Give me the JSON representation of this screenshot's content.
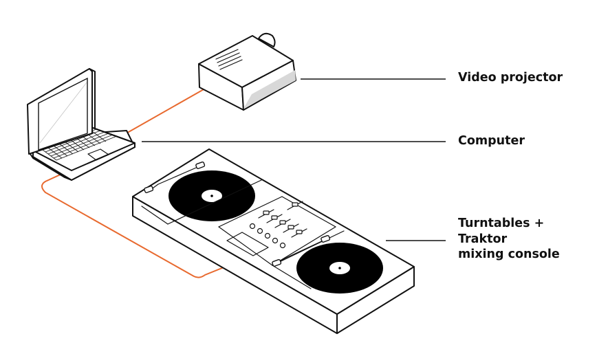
{
  "labels": {
    "video_projector": "Video projector",
    "computer": "Computer",
    "turntables_line1": "Turntables +",
    "turntables_line2": "Traktor",
    "turntables_line3": "mixing console"
  },
  "colors": {
    "cable": "#e8692e",
    "outline": "#111111",
    "background": "#ffffff"
  }
}
